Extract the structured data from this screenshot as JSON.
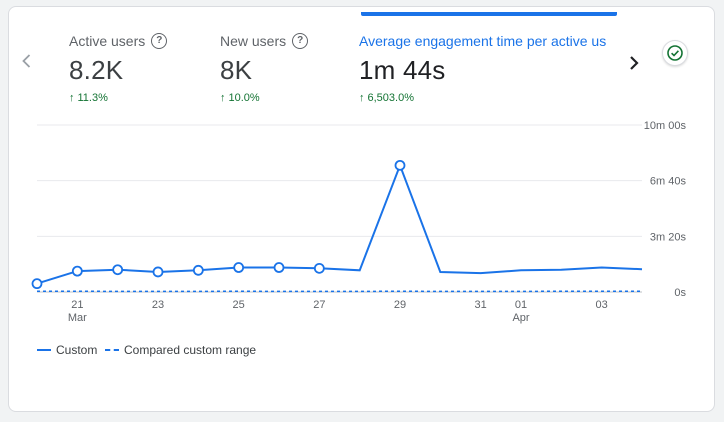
{
  "metrics": [
    {
      "label": "Active users",
      "value": "8.2K",
      "change": "11.3%",
      "has_help": true
    },
    {
      "label": "New users",
      "value": "8K",
      "change": "10.0%",
      "has_help": true
    },
    {
      "label": "Average engagement time per active us",
      "value": "1m 44s",
      "change": "6,503.0%",
      "has_help": false
    }
  ],
  "legend": {
    "primary": "Custom",
    "compared": "Compared custom range"
  },
  "colors": {
    "accent": "#1a73e8",
    "positive": "#137333"
  },
  "chart_data": {
    "type": "line",
    "title": "Average engagement time per active user",
    "ylim": [
      0,
      600
    ],
    "y_ticks": [
      {
        "label": "10m 00s",
        "value": 600
      },
      {
        "label": "6m 40s",
        "value": 400
      },
      {
        "label": "3m 20s",
        "value": 200
      },
      {
        "label": "0s",
        "value": 0
      }
    ],
    "x_ticks": [
      {
        "label": "21",
        "sub": "Mar",
        "index": 1
      },
      {
        "label": "23",
        "sub": "",
        "index": 3
      },
      {
        "label": "25",
        "sub": "",
        "index": 5
      },
      {
        "label": "27",
        "sub": "",
        "index": 7
      },
      {
        "label": "29",
        "sub": "",
        "index": 9
      },
      {
        "label": "31",
        "sub": "",
        "index": 11
      },
      {
        "label": "01",
        "sub": "Apr",
        "index": 12
      },
      {
        "label": "03",
        "sub": "",
        "index": 14
      }
    ],
    "series": [
      {
        "name": "Custom",
        "style": "solid",
        "values": [
          30,
          75,
          80,
          72,
          78,
          88,
          88,
          85,
          78,
          455,
          72,
          68,
          78,
          80,
          88,
          82
        ],
        "marked_indices": [
          0,
          1,
          2,
          3,
          4,
          5,
          6,
          7,
          9
        ]
      },
      {
        "name": "Compared custom range",
        "style": "dashed",
        "values": [
          3,
          3,
          2,
          2,
          2,
          3,
          2,
          2,
          2,
          3,
          2,
          2,
          2,
          3,
          3,
          3
        ],
        "marked_indices": []
      }
    ]
  }
}
